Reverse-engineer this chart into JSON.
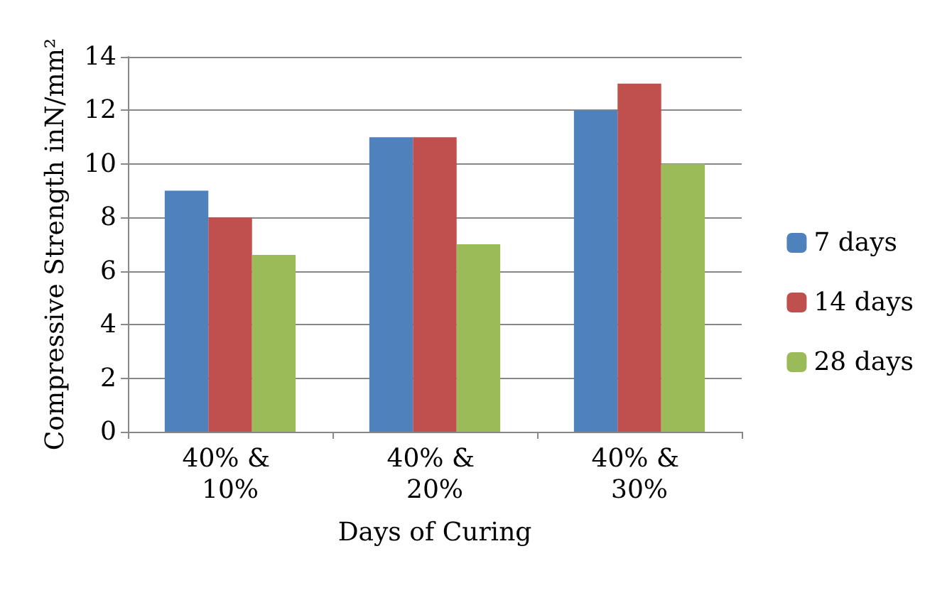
{
  "chart_data": {
    "type": "bar",
    "xlabel": "Days of Curing",
    "ylabel": "Compressive Strength inN/mm²",
    "categories": [
      "40% & 10%",
      "40% & 20%",
      "40% & 30%"
    ],
    "series": [
      {
        "name": "7 days",
        "color": "#4f81bd",
        "values": [
          9,
          11,
          12
        ]
      },
      {
        "name": "14 days",
        "color": "#c0504d",
        "values": [
          8,
          11,
          13
        ]
      },
      {
        "name": "28 days",
        "color": "#9bbb59",
        "values": [
          6.6,
          7,
          10
        ]
      }
    ],
    "ylim": [
      0,
      14
    ],
    "yticks": [
      0,
      2,
      4,
      6,
      8,
      10,
      12,
      14
    ],
    "grid": "y",
    "legend": "right"
  }
}
